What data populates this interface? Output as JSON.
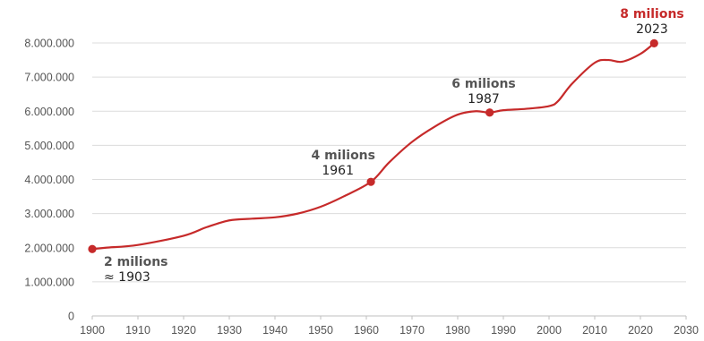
{
  "chart_data": {
    "type": "line",
    "xlim": [
      1900,
      2030
    ],
    "ylim": [
      0,
      8000000
    ],
    "x_ticks": [
      1900,
      1910,
      1920,
      1930,
      1940,
      1950,
      1960,
      1970,
      1980,
      1990,
      2000,
      2010,
      2020,
      2030
    ],
    "x_tick_labels": [
      "1900",
      "1910",
      "1920",
      "1930",
      "1940",
      "1950",
      "1960",
      "1970",
      "1980",
      "1990",
      "2000",
      "2010",
      "2020",
      "2030"
    ],
    "y_ticks": [
      0,
      1000000,
      2000000,
      3000000,
      4000000,
      5000000,
      6000000,
      7000000,
      8000000
    ],
    "y_tick_labels": [
      "0",
      "1.000.000",
      "2.000.000",
      "3.000.000",
      "4.000.000",
      "5.000.000",
      "6.000.000",
      "7.000.000",
      "8.000.000"
    ],
    "grid": true,
    "line_color": "#c62a2a",
    "series": [
      {
        "x": [
          1900,
          1903,
          1910,
          1920,
          1925,
          1930,
          1935,
          1940,
          1945,
          1950,
          1955,
          1961,
          1965,
          1970,
          1975,
          1980,
          1984,
          1987,
          1990,
          1995,
          2000,
          2002,
          2005,
          2010,
          2013,
          2016,
          2020,
          2023
        ],
        "y": [
          1960000,
          2000000,
          2080000,
          2350000,
          2600000,
          2800000,
          2850000,
          2890000,
          3000000,
          3200000,
          3500000,
          3930000,
          4500000,
          5100000,
          5550000,
          5900000,
          6000000,
          5960000,
          6030000,
          6070000,
          6150000,
          6300000,
          6800000,
          7420000,
          7500000,
          7450000,
          7680000,
          7990000
        ]
      }
    ],
    "markers": [
      {
        "x": 1900,
        "y": 1960000
      },
      {
        "x": 1961,
        "y": 3930000
      },
      {
        "x": 1987,
        "y": 5960000
      },
      {
        "x": 2023,
        "y": 7990000
      }
    ],
    "annotations": [
      {
        "title": "2 milions",
        "year": "≈ 1903",
        "highlight": false
      },
      {
        "title": "4 milions",
        "year": "1961",
        "highlight": false
      },
      {
        "title": "6 milions",
        "year": "1987",
        "highlight": false
      },
      {
        "title": "8 milions",
        "year": "2023",
        "highlight": true
      }
    ]
  }
}
